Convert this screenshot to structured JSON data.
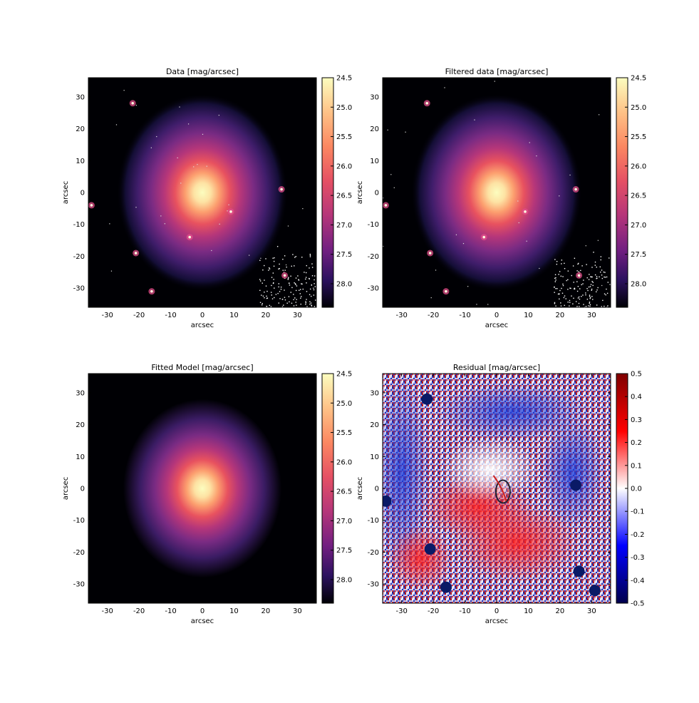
{
  "chart_data": [
    {
      "type": "heatmap",
      "title": "Data [mag/arcsec]",
      "xlabel": "arcsec",
      "ylabel": "arcsec",
      "xlim": [
        -36,
        36
      ],
      "ylim": [
        -36,
        36
      ],
      "xticks": [
        "-30",
        "-20",
        "-10",
        "0",
        "10",
        "20",
        "30"
      ],
      "yticks": [
        "30",
        "20",
        "10",
        "0",
        "-10",
        "-20",
        "-30"
      ],
      "colormap": "magma_r",
      "colorbar": {
        "range": [
          24.5,
          28.4
        ],
        "ticks": [
          "24.5",
          "25.0",
          "25.5",
          "26.0",
          "26.5",
          "27.0",
          "27.5",
          "28.0"
        ]
      },
      "field_sources": [
        [
          -22,
          28
        ],
        [
          25,
          1
        ],
        [
          -35,
          -4
        ],
        [
          -21,
          -19
        ],
        [
          -16,
          -31
        ],
        [
          26,
          -26
        ],
        [
          9,
          -6
        ],
        [
          -4,
          -14
        ]
      ]
    },
    {
      "type": "heatmap",
      "title": "Filtered data [mag/arcsec]",
      "xlabel": "arcsec",
      "ylabel": "arcsec",
      "xlim": [
        -36,
        36
      ],
      "ylim": [
        -36,
        36
      ],
      "xticks": [
        "-30",
        "-20",
        "-10",
        "0",
        "10",
        "20",
        "30"
      ],
      "yticks": [
        "30",
        "20",
        "10",
        "0",
        "-10",
        "-20",
        "-30"
      ],
      "colormap": "magma_r",
      "colorbar": {
        "range": [
          24.5,
          28.4
        ],
        "ticks": [
          "24.5",
          "25.0",
          "25.5",
          "26.0",
          "26.5",
          "27.0",
          "27.5",
          "28.0"
        ]
      },
      "field_sources": [
        [
          -22,
          28
        ],
        [
          25,
          1
        ],
        [
          -35,
          -4
        ],
        [
          -21,
          -19
        ],
        [
          -16,
          -31
        ],
        [
          26,
          -26
        ],
        [
          9,
          -6
        ],
        [
          -4,
          -14
        ]
      ]
    },
    {
      "type": "heatmap",
      "title": "Fitted Model [mag/arcsec]",
      "xlabel": "arcsec",
      "ylabel": "arcsec",
      "xlim": [
        -36,
        36
      ],
      "ylim": [
        -36,
        36
      ],
      "xticks": [
        "-30",
        "-20",
        "-10",
        "0",
        "10",
        "20",
        "30"
      ],
      "yticks": [
        "30",
        "20",
        "10",
        "0",
        "-10",
        "-20",
        "-30"
      ],
      "colormap": "magma_r",
      "colorbar": {
        "range": [
          24.5,
          28.4
        ],
        "ticks": [
          "24.5",
          "25.0",
          "25.5",
          "26.0",
          "26.5",
          "27.0",
          "27.5",
          "28.0"
        ]
      }
    },
    {
      "type": "heatmap",
      "title": "Residual [mag/arcsec]",
      "xlabel": "arcsec",
      "ylabel": "arcsec",
      "xlim": [
        -36,
        36
      ],
      "ylim": [
        -36,
        36
      ],
      "xticks": [
        "-30",
        "-20",
        "-10",
        "0",
        "10",
        "20",
        "30"
      ],
      "yticks": [
        "30",
        "20",
        "10",
        "0",
        "-10",
        "-20",
        "-30"
      ],
      "colormap": "seismic",
      "colorbar": {
        "range": [
          -0.5,
          0.5
        ],
        "ticks": [
          "0.5",
          "0.4",
          "0.3",
          "0.2",
          "0.1",
          "0.0",
          "-0.1",
          "-0.2",
          "-0.3",
          "-0.4",
          "-0.5"
        ]
      },
      "masked_sources": [
        [
          -22,
          28
        ],
        [
          25,
          1
        ],
        [
          -35,
          -4
        ],
        [
          -21,
          -19
        ],
        [
          -16,
          -31
        ],
        [
          26,
          -26
        ],
        [
          31,
          -32
        ]
      ]
    }
  ]
}
